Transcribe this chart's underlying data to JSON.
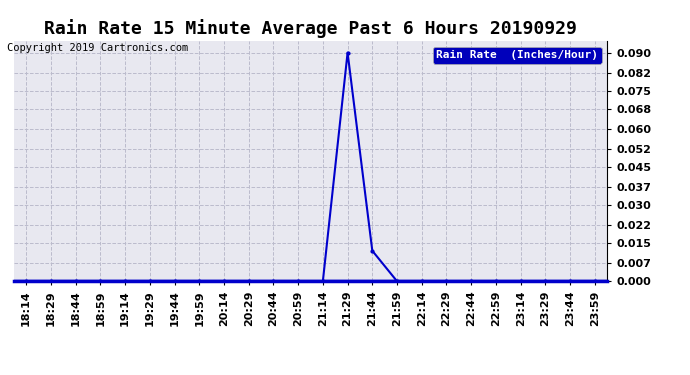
{
  "title": "Rain Rate 15 Minute Average Past 6 Hours 20190929",
  "copyright": "Copyright 2019 Cartronics.com",
  "legend_label": "Rain Rate  (Inches/Hour)",
  "legend_bg": "#0000bb",
  "legend_fg": "#ffffff",
  "plot_bg": "#e8e8f0",
  "fig_bg": "#ffffff",
  "line_color": "#0000cc",
  "marker_color": "#000000",
  "grid_color": "#bbbbcc",
  "grid_linestyle": "--",
  "ylim": [
    0.0,
    0.0945
  ],
  "yticks": [
    0.0,
    0.007,
    0.015,
    0.022,
    0.03,
    0.037,
    0.045,
    0.052,
    0.06,
    0.068,
    0.075,
    0.082,
    0.09
  ],
  "x_labels": [
    "18:14",
    "18:29",
    "18:44",
    "18:59",
    "19:14",
    "19:29",
    "19:44",
    "19:59",
    "20:14",
    "20:29",
    "20:44",
    "20:59",
    "21:14",
    "21:29",
    "21:44",
    "21:59",
    "22:14",
    "22:29",
    "22:44",
    "22:59",
    "23:14",
    "23:29",
    "23:44",
    "23:59"
  ],
  "y_data": [
    0.0,
    0.0,
    0.0,
    0.0,
    0.0,
    0.0,
    0.0,
    0.0,
    0.0,
    0.0,
    0.0,
    0.0,
    0.0,
    0.09,
    0.012,
    0.0,
    0.0,
    0.0,
    0.0,
    0.0,
    0.0,
    0.0,
    0.0,
    0.0
  ],
  "title_fontsize": 13,
  "tick_fontsize": 8,
  "copyright_fontsize": 7.5,
  "legend_fontsize": 8
}
